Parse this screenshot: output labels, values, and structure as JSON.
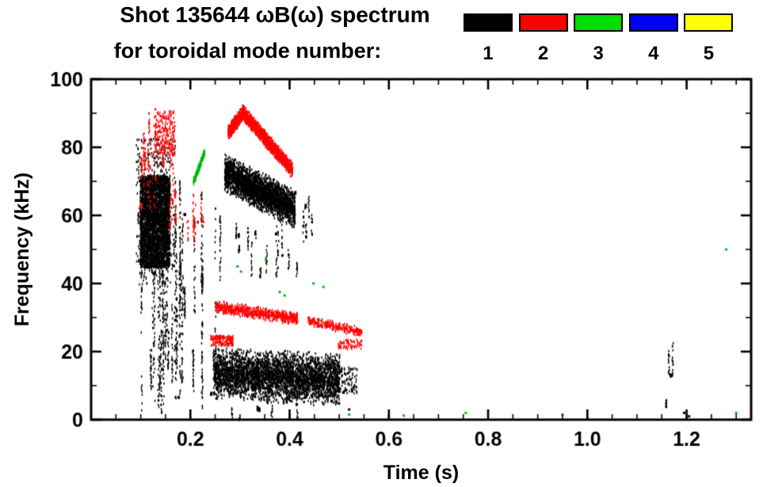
{
  "figure": {
    "title_line1": "Shot 135644 ωB(ω) spectrum",
    "title_line2": "for toroidal mode number:",
    "background": "#ffffff"
  },
  "legend": {
    "items": [
      {
        "label": "1",
        "color": "#000000"
      },
      {
        "label": "2",
        "color": "#ff0000"
      },
      {
        "label": "3",
        "color": "#00dd00"
      },
      {
        "label": "4",
        "color": "#0000ff"
      },
      {
        "label": "5",
        "color": "#ffff00"
      }
    ]
  },
  "chart_data": {
    "type": "scatter",
    "title": "Shot 135644 ωB(ω) spectrum for toroidal mode number: 1 2 3 4 5",
    "xlabel": "Time (s)",
    "ylabel": "Frequency (kHz)",
    "xlim": [
      0.0,
      1.33
    ],
    "ylim": [
      0,
      100
    ],
    "xticks": [
      0.2,
      0.4,
      0.6,
      0.8,
      1.0,
      1.2
    ],
    "xtick_labels": [
      "0.2",
      "0.4",
      "0.6",
      "0.8",
      "1.0",
      "1.2"
    ],
    "x_minor_step": 0.05,
    "yticks": [
      0,
      20,
      40,
      60,
      80,
      100
    ],
    "ytick_labels": [
      "0",
      "20",
      "40",
      "60",
      "80",
      "100"
    ],
    "y_minor_step": 10,
    "grid": false,
    "legend_position": "top",
    "series": [
      {
        "name": "mode 1",
        "color": "#000000",
        "clusters": [
          {
            "kind": "blob",
            "t": [
              0.098,
              0.158
            ],
            "f": [
              45,
              72
            ],
            "n": 3200,
            "desc": "dense burst 0.10-0.16 s at 45-72 kHz"
          },
          {
            "kind": "blob",
            "t": [
              0.09,
              0.17
            ],
            "f": [
              40,
              83
            ],
            "n": 500,
            "desc": "sparse halo around early burst"
          },
          {
            "kind": "vstreaks",
            "t": [
              0.1,
              0.26
            ],
            "f": [
              1,
              75
            ],
            "streaks": 42,
            "pts": 26,
            "desc": "broadband vertical spikes 0.10-0.26 s"
          },
          {
            "kind": "trend",
            "t": [
              0.268,
              0.41
            ],
            "f_start": 73,
            "f_end": 62,
            "spread": 6,
            "n": 2700,
            "desc": "chirping band 73->62 kHz"
          },
          {
            "kind": "vstreaks",
            "t": [
              0.28,
              0.42
            ],
            "f": [
              42,
              58
            ],
            "streaks": 14,
            "pts": 12
          },
          {
            "kind": "vstreaks",
            "t": [
              0.4,
              0.46
            ],
            "f": [
              52,
              68
            ],
            "streaks": 7,
            "pts": 10
          },
          {
            "kind": "trend",
            "t": [
              0.245,
              0.5
            ],
            "f_start": 14,
            "f_end": 12,
            "spread": 8,
            "n": 3800,
            "desc": "strong low-frequency band 4-22 kHz, 0.25-0.50 s"
          },
          {
            "kind": "vstreaks",
            "t": [
              0.26,
              0.46
            ],
            "f": [
              0,
              8
            ],
            "streaks": 10,
            "pts": 8
          },
          {
            "kind": "blob",
            "t": [
              0.5,
              0.535
            ],
            "f": [
              8,
              16
            ],
            "n": 90
          },
          {
            "kind": "vstreaks",
            "t": [
              1.145,
              1.175
            ],
            "f": [
              2,
              28
            ],
            "streaks": 4,
            "pts": 14,
            "desc": "late sparse spikes near 1.16 s"
          },
          {
            "kind": "xy",
            "xy": [
              [
                1.195,
                2
              ],
              [
                1.205,
                1
              ],
              [
                0.52,
                3
              ]
            ]
          }
        ]
      },
      {
        "name": "mode 2",
        "color": "#ff0000",
        "clusters": [
          {
            "kind": "vstreaks",
            "t": [
              0.1,
              0.175
            ],
            "f": [
              55,
              93
            ],
            "streaks": 16,
            "pts": 14,
            "desc": "early high-frequency activity 55-93 kHz"
          },
          {
            "kind": "blob",
            "t": [
              0.128,
              0.168
            ],
            "f": [
              78,
              91
            ],
            "n": 220
          },
          {
            "kind": "vstreaks",
            "t": [
              0.185,
              0.23
            ],
            "f": [
              52,
              67
            ],
            "streaks": 8,
            "pts": 8
          },
          {
            "kind": "trend",
            "t": [
              0.275,
              0.305
            ],
            "f_start": 84.5,
            "f_end": 90.5,
            "spread": 2.5,
            "n": 430,
            "desc": "rising to ~90 kHz"
          },
          {
            "kind": "trend",
            "t": [
              0.305,
              0.405
            ],
            "f_start": 90.5,
            "f_end": 73.5,
            "spread": 2.5,
            "n": 1350,
            "desc": "falling band 90->74 kHz"
          },
          {
            "kind": "trend",
            "t": [
              0.25,
              0.415
            ],
            "f_start": 33.5,
            "f_end": 30,
            "spread": 2,
            "n": 680,
            "desc": "band near 30-34 kHz"
          },
          {
            "kind": "blob",
            "t": [
              0.24,
              0.285
            ],
            "f": [
              22,
              25
            ],
            "n": 150
          },
          {
            "kind": "trend",
            "t": [
              0.435,
              0.545
            ],
            "f_start": 29.5,
            "f_end": 26,
            "spread": 1.5,
            "n": 270,
            "desc": "fading band 29->26 kHz"
          },
          {
            "kind": "blob",
            "t": [
              0.495,
              0.545
            ],
            "f": [
              21,
              24
            ],
            "n": 70
          }
        ]
      },
      {
        "name": "mode 3",
        "color": "#00bb00",
        "clusters": [
          {
            "kind": "trend",
            "t": [
              0.205,
              0.228
            ],
            "f_start": 70,
            "f_end": 79,
            "spread": 1.2,
            "n": 300,
            "desc": "short rising chirp 70->79 kHz near 0.22 s"
          },
          {
            "kind": "xy",
            "xy": [
              [
                0.295,
                45
              ],
              [
                0.302,
                43.5
              ],
              [
                0.352,
                47
              ],
              [
                0.38,
                37.5
              ],
              [
                0.39,
                36.5
              ],
              [
                0.448,
                40
              ],
              [
                0.468,
                39
              ],
              [
                0.52,
                1.5
              ],
              [
                0.6,
                1
              ],
              [
                0.63,
                1.2
              ],
              [
                0.755,
                2
              ],
              [
                0.95,
                1.5
              ],
              [
                1.28,
                50
              ],
              [
                1.3,
                2
              ]
            ]
          }
        ]
      },
      {
        "name": "mode 4",
        "color": "#0000ff",
        "clusters": []
      },
      {
        "name": "mode 5",
        "color": "#ffff00",
        "clusters": []
      }
    ]
  }
}
